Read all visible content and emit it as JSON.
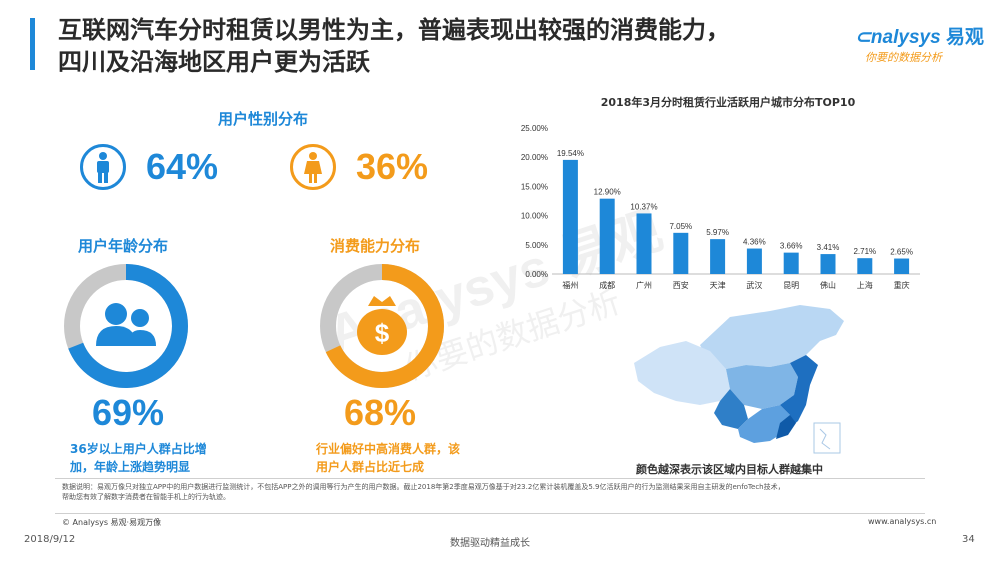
{
  "header": {
    "title_line1": "互联网汽车分时租赁以男性为主，普遍表现出较强的消费能力，",
    "title_line2": "四川及沿海地区用户更为活跃",
    "logo_brand": "nalysys",
    "logo_brand_cn": "易观",
    "logo_slogan": "你要的数据分析"
  },
  "colors": {
    "blue": "#1e88d8",
    "orange": "#f39b1b",
    "grey": "#c8c8c8"
  },
  "gender": {
    "heading": "用户性别分布",
    "male_pct": "64%",
    "female_pct": "36%",
    "male_icon": "male-person-icon",
    "female_icon": "female-person-icon"
  },
  "age": {
    "heading": "用户年龄分布",
    "pct": "69%",
    "ratio": 0.69,
    "icon": "users-icon",
    "desc_line1": "36岁以上用户人群占比增",
    "desc_line2": "加，年龄上涨趋势明显"
  },
  "consumption": {
    "heading": "消费能力分布",
    "pct": "68%",
    "ratio": 0.68,
    "icon": "money-bag-icon",
    "desc_line1": "行业偏好中高消费人群，该",
    "desc_line2": "用户人群占比近七成"
  },
  "chart_data": {
    "type": "bar",
    "title": "2018年3月分时租赁行业活跃用户城市分布TOP10",
    "categories": [
      "福州",
      "成都",
      "广州",
      "西安",
      "天津",
      "武汉",
      "昆明",
      "佛山",
      "上海",
      "重庆"
    ],
    "values": [
      19.54,
      12.9,
      10.37,
      7.05,
      5.97,
      4.36,
      3.66,
      3.41,
      2.71,
      2.65
    ],
    "value_labels": [
      "19.54%",
      "12.90%",
      "10.37%",
      "7.05%",
      "5.97%",
      "4.36%",
      "3.66%",
      "3.41%",
      "2.71%",
      "2.65%"
    ],
    "yticks": [
      "0.00%",
      "5.00%",
      "10.00%",
      "15.00%",
      "20.00%",
      "25.00%"
    ],
    "ylim": [
      0,
      25
    ],
    "color": "#1e88d8"
  },
  "map": {
    "caption": "颜色越深表示该区域内目标人群越集中"
  },
  "footnote": {
    "line1": "数据说明：易观万像只对独立APP中的用户数据进行监测统计，不包括APP之外的调用等行为产生的用户数据。截止2018年第2季度易观万像基于对23.2亿累计装机覆盖及5.9亿活跃用户的行为监测结果采用自主研发的enfoTech技术，",
    "line2": "帮助您有效了解数字消费者在智能手机上的行为轨迹。"
  },
  "footer": {
    "copyright": "© Analysys 易观·易观万像",
    "website": "www.analysys.cn",
    "date": "2018/9/12",
    "slogan": "数据驱动精益成长",
    "page": "34"
  }
}
